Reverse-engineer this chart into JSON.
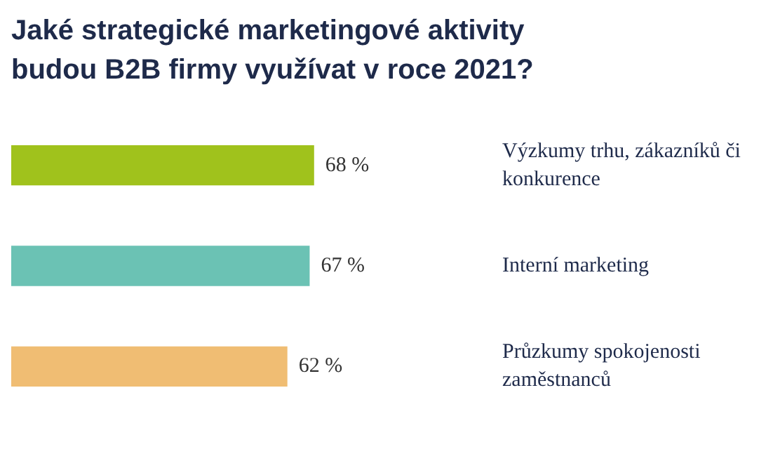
{
  "chart_data": {
    "type": "bar",
    "orientation": "horizontal",
    "title": "Jaké strategické marketingové aktivity budou B2B firmy využívat v roce 2021?",
    "categories": [
      "Výzkumy trhu, zákazníků či konkurence",
      "Interní marketing",
      "Průzkumy spokojenosti zaměstnanců"
    ],
    "values": [
      68,
      67,
      62
    ],
    "colors": [
      "#a0c21c",
      "#6bc2b4",
      "#f0bd73"
    ],
    "value_labels": [
      "68 %",
      "67 %",
      "62 %"
    ],
    "tick_labels": "y",
    "legend": false
  }
}
